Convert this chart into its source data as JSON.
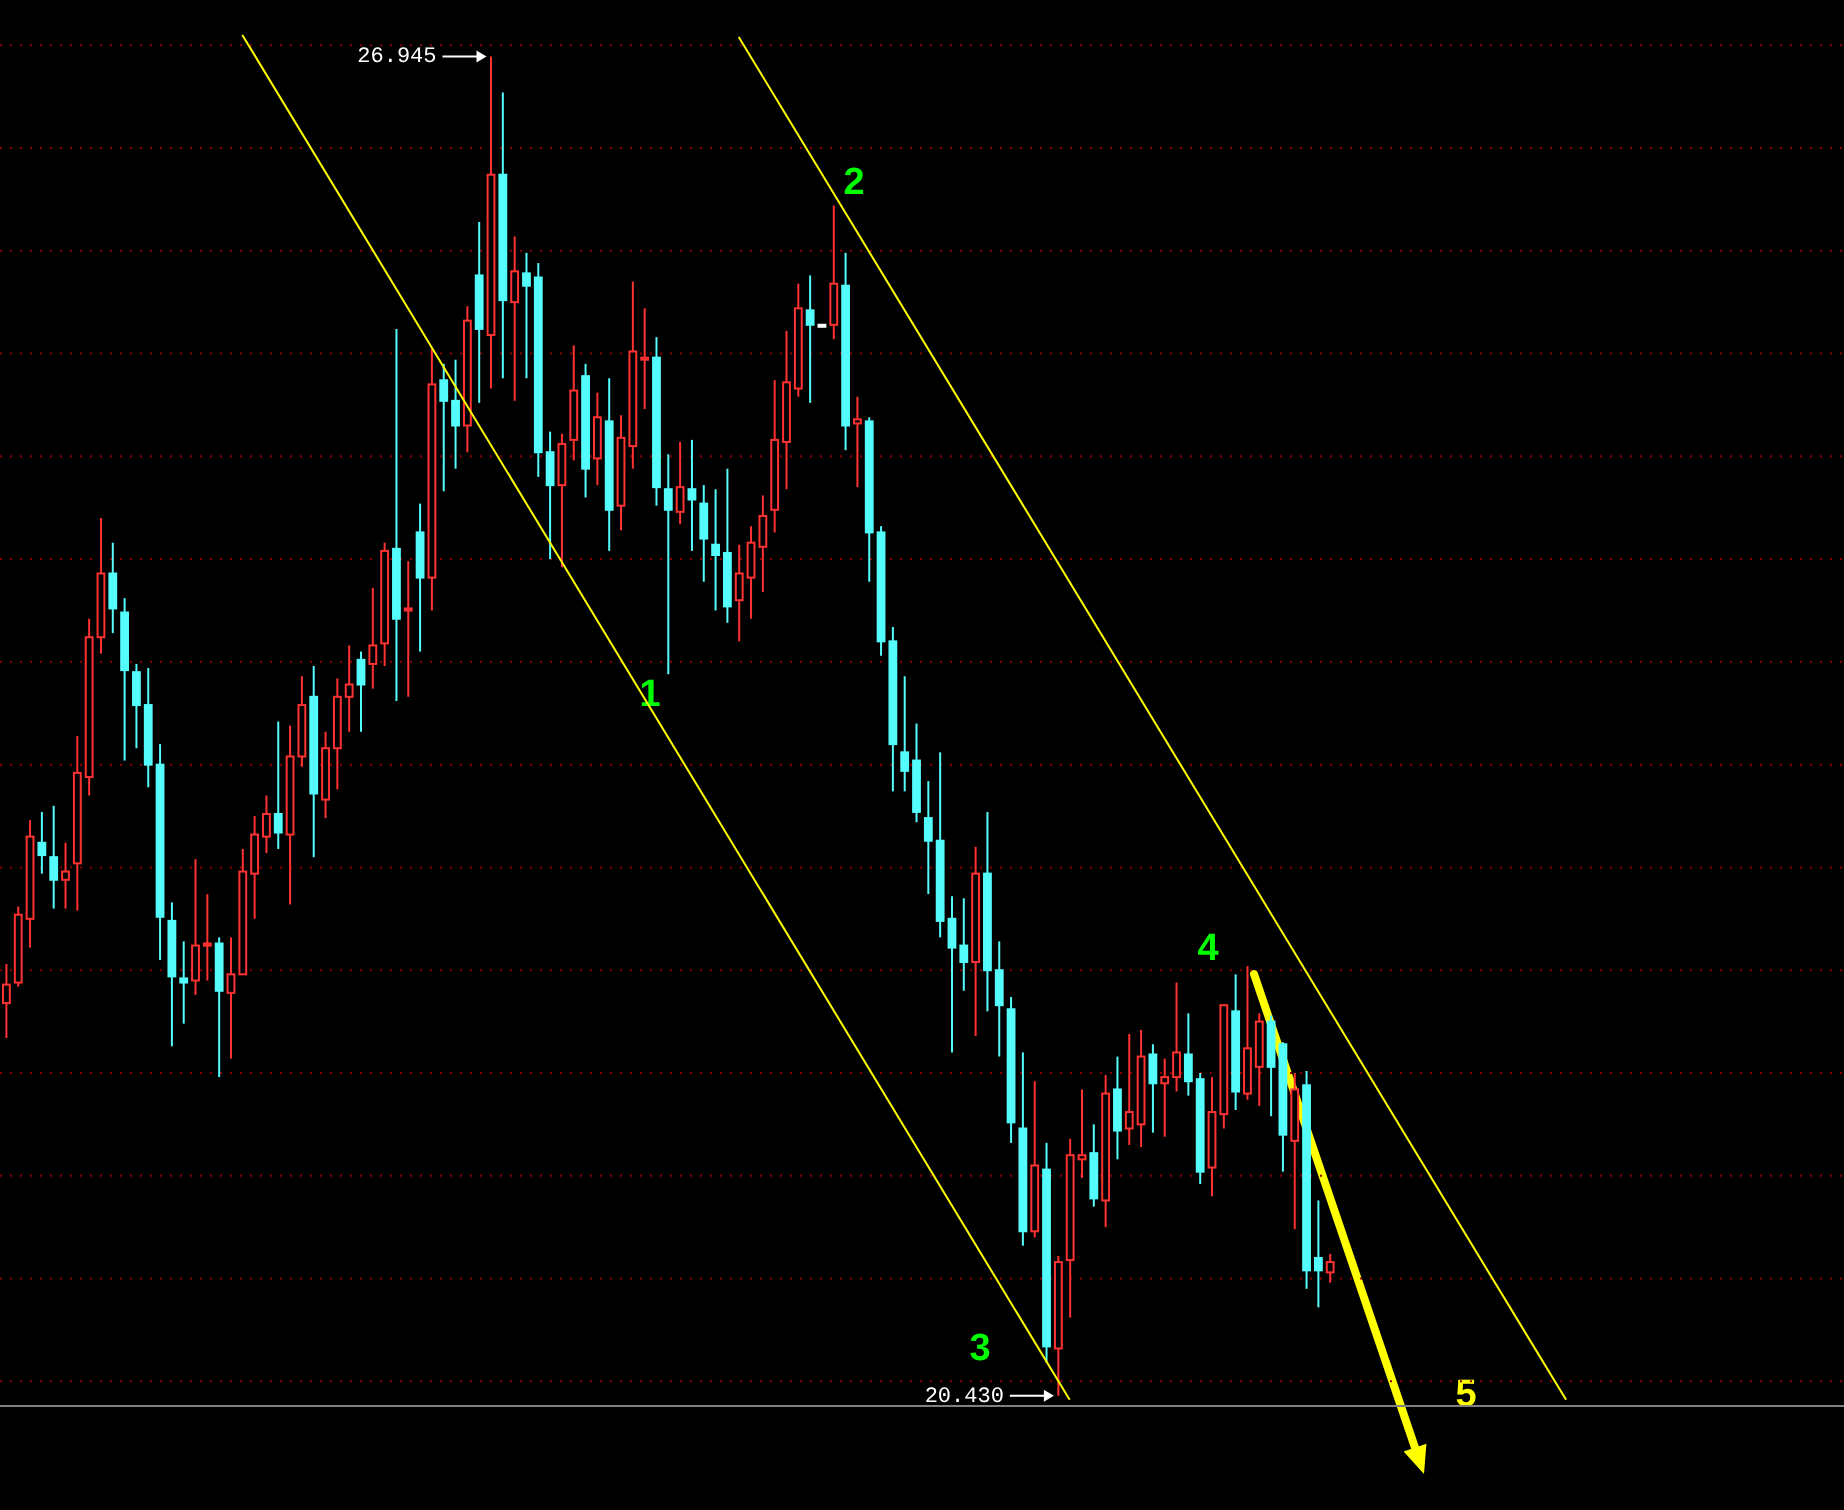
{
  "chart_data": {
    "type": "candlestick",
    "categories": [
      null,
      null,
      null,
      null,
      null,
      null,
      null,
      null,
      null,
      null,
      null,
      null,
      null,
      null,
      null,
      null,
      null,
      null,
      null,
      null,
      null,
      null,
      null,
      null,
      null,
      null,
      null,
      null,
      null,
      null,
      null,
      null,
      null,
      null,
      null,
      null,
      null,
      null,
      null,
      null,
      null,
      null,
      null,
      null,
      null,
      null,
      null,
      null,
      null,
      null,
      null,
      null,
      null,
      null,
      null,
      null,
      null,
      null,
      null,
      null,
      null,
      null,
      null,
      null,
      null,
      null,
      null,
      null,
      null,
      null,
      null,
      null,
      null,
      null,
      null,
      null,
      null,
      null,
      null,
      null,
      null,
      null,
      null,
      null,
      null,
      null,
      null,
      null,
      null,
      null,
      null,
      null,
      null,
      null,
      null,
      null,
      null,
      null,
      null,
      null,
      null,
      null,
      null,
      null,
      null,
      null,
      null,
      null,
      null,
      null,
      null,
      null,
      null,
      null,
      null,
      null,
      null,
      null,
      null,
      null,
      null,
      null,
      null,
      null,
      null,
      null,
      null,
      null,
      null,
      null,
      null,
      null,
      null
    ],
    "ohlc": [
      [
        22.34,
        22.53,
        22.17,
        22.43
      ],
      [
        22.44,
        22.81,
        22.42,
        22.77
      ],
      [
        22.75,
        23.23,
        22.61,
        23.15
      ],
      [
        23.12,
        23.27,
        22.97,
        23.06
      ],
      [
        23.05,
        23.3,
        22.8,
        22.94
      ],
      [
        22.94,
        23.12,
        22.8,
        22.98
      ],
      [
        23.02,
        23.64,
        22.79,
        23.46
      ],
      [
        23.44,
        24.21,
        23.35,
        24.12
      ],
      [
        24.12,
        24.7,
        24.04,
        24.43
      ],
      [
        24.43,
        24.58,
        24.14,
        24.26
      ],
      [
        24.24,
        24.31,
        23.52,
        23.96
      ],
      [
        23.95,
        23.99,
        23.58,
        23.79
      ],
      [
        23.79,
        23.97,
        23.39,
        23.5
      ],
      [
        23.5,
        23.6,
        22.55,
        22.76
      ],
      [
        22.74,
        22.83,
        22.13,
        22.47
      ],
      [
        22.46,
        22.64,
        22.24,
        22.44
      ],
      [
        22.45,
        23.04,
        22.38,
        22.62
      ],
      [
        22.62,
        22.87,
        22.45,
        22.63
      ],
      [
        22.63,
        22.66,
        21.98,
        22.4
      ],
      [
        22.39,
        22.66,
        22.07,
        22.48
      ],
      [
        22.48,
        23.09,
        22.48,
        22.98
      ],
      [
        22.97,
        23.25,
        22.75,
        23.16
      ],
      [
        23.15,
        23.35,
        23.07,
        23.26
      ],
      [
        23.26,
        23.71,
        23.09,
        23.17
      ],
      [
        23.16,
        23.69,
        22.82,
        23.54
      ],
      [
        23.54,
        23.93,
        23.49,
        23.79
      ],
      [
        23.83,
        23.98,
        23.05,
        23.36
      ],
      [
        23.33,
        23.66,
        23.24,
        23.58
      ],
      [
        23.58,
        23.92,
        23.38,
        23.83
      ],
      [
        23.83,
        24.08,
        23.66,
        23.89
      ],
      [
        24.01,
        24.05,
        23.66,
        23.89
      ],
      [
        23.99,
        24.36,
        23.87,
        24.08
      ],
      [
        24.09,
        24.58,
        23.98,
        24.54
      ],
      [
        24.55,
        25.62,
        23.81,
        24.21
      ],
      [
        24.25,
        24.49,
        23.83,
        24.26
      ],
      [
        24.63,
        24.77,
        24.05,
        24.41
      ],
      [
        24.41,
        25.53,
        24.25,
        25.35
      ],
      [
        25.37,
        25.45,
        24.83,
        25.27
      ],
      [
        25.27,
        25.47,
        24.94,
        25.15
      ],
      [
        25.15,
        25.73,
        25.02,
        25.66
      ],
      [
        25.88,
        26.14,
        25.26,
        25.62
      ],
      [
        25.59,
        26.945,
        25.33,
        26.37
      ],
      [
        26.37,
        26.77,
        25.38,
        25.76
      ],
      [
        25.75,
        26.07,
        25.27,
        25.9
      ],
      [
        25.89,
        25.99,
        25.38,
        25.83
      ],
      [
        25.87,
        25.94,
        24.9,
        25.02
      ],
      [
        25.02,
        25.12,
        24.5,
        24.86
      ],
      [
        24.86,
        25.11,
        24.46,
        25.06
      ],
      [
        25.08,
        25.54,
        24.98,
        25.32
      ],
      [
        25.39,
        25.45,
        24.8,
        24.94
      ],
      [
        24.99,
        25.31,
        24.86,
        25.19
      ],
      [
        25.17,
        25.38,
        24.54,
        24.74
      ],
      [
        24.76,
        25.2,
        24.64,
        25.09
      ],
      [
        25.05,
        25.85,
        24.94,
        25.51
      ],
      [
        25.47,
        25.72,
        25.23,
        25.48
      ],
      [
        25.48,
        25.58,
        24.76,
        24.85
      ],
      [
        24.84,
        25.01,
        23.94,
        24.74
      ],
      [
        24.73,
        25.07,
        24.67,
        24.85
      ],
      [
        24.84,
        25.08,
        24.54,
        24.79
      ],
      [
        24.77,
        24.86,
        24.39,
        24.6
      ],
      [
        24.57,
        24.84,
        24.25,
        24.52
      ],
      [
        24.53,
        24.94,
        24.19,
        24.27
      ],
      [
        24.3,
        24.57,
        24.1,
        24.43
      ],
      [
        24.41,
        24.66,
        24.21,
        24.58
      ],
      [
        24.56,
        24.81,
        24.34,
        24.71
      ],
      [
        24.74,
        25.37,
        24.63,
        25.08
      ],
      [
        25.07,
        25.61,
        24.84,
        25.36
      ],
      [
        25.33,
        25.84,
        25.29,
        25.72
      ],
      [
        25.71,
        25.88,
        25.26,
        25.64
      ],
      [
        25.64,
        25.64,
        25.64,
        25.64
      ],
      [
        25.64,
        26.22,
        25.57,
        25.84
      ],
      [
        25.83,
        25.99,
        25.03,
        25.15
      ],
      [
        25.16,
        25.29,
        24.85,
        25.18
      ],
      [
        25.17,
        25.19,
        24.39,
        24.63
      ],
      [
        24.63,
        24.66,
        24.03,
        24.1
      ],
      [
        24.1,
        24.17,
        23.37,
        23.6
      ],
      [
        23.56,
        23.93,
        23.37,
        23.47
      ],
      [
        23.52,
        23.7,
        23.22,
        23.27
      ],
      [
        23.24,
        23.42,
        22.87,
        23.13
      ],
      [
        23.13,
        23.56,
        22.66,
        22.74
      ],
      [
        22.75,
        22.86,
        22.1,
        22.61
      ],
      [
        22.62,
        22.85,
        22.4,
        22.54
      ],
      [
        22.54,
        23.1,
        22.18,
        22.97
      ],
      [
        22.97,
        23.27,
        22.3,
        22.5
      ],
      [
        22.5,
        22.64,
        22.08,
        22.33
      ],
      [
        22.31,
        22.37,
        21.66,
        21.76
      ],
      [
        21.73,
        22.1,
        21.16,
        21.23
      ],
      [
        21.23,
        21.96,
        21.2,
        21.55
      ],
      [
        21.53,
        21.66,
        20.59,
        20.67
      ],
      [
        20.66,
        21.11,
        20.43,
        21.08
      ],
      [
        21.09,
        21.68,
        20.81,
        21.6
      ],
      [
        21.58,
        21.92,
        21.49,
        21.6
      ],
      [
        21.61,
        21.75,
        21.35,
        21.39
      ],
      [
        21.38,
        21.99,
        21.25,
        21.9
      ],
      [
        21.92,
        22.08,
        21.58,
        21.72
      ],
      [
        21.73,
        22.19,
        21.65,
        21.81
      ],
      [
        21.75,
        22.21,
        21.64,
        22.08
      ],
      [
        22.09,
        22.14,
        21.71,
        21.95
      ],
      [
        21.95,
        22.07,
        21.69,
        21.98
      ],
      [
        21.98,
        22.44,
        21.91,
        22.1
      ],
      [
        22.09,
        22.29,
        21.89,
        21.96
      ],
      [
        21.97,
        22.0,
        21.46,
        21.52
      ],
      [
        21.54,
        21.98,
        21.4,
        21.81
      ],
      [
        21.8,
        22.33,
        21.73,
        22.33
      ],
      [
        22.3,
        22.48,
        21.82,
        21.91
      ],
      [
        21.9,
        22.52,
        21.87,
        22.12
      ],
      [
        22.03,
        22.29,
        21.84,
        22.25
      ],
      [
        22.25,
        22.28,
        21.79,
        22.03
      ],
      [
        22.14,
        22.15,
        21.52,
        21.7
      ],
      [
        21.67,
        22.0,
        21.24,
        21.92
      ],
      [
        21.94,
        22.01,
        20.95,
        21.04
      ],
      [
        21.1,
        21.38,
        20.86,
        21.04
      ],
      [
        21.03,
        21.12,
        20.98,
        21.08
      ],
      null,
      null,
      null,
      null,
      null,
      null,
      null,
      null,
      null,
      null,
      null,
      null,
      null,
      null,
      null,
      null,
      null,
      null,
      null,
      null
    ],
    "colors": [
      "#ff3232",
      "#ff3232",
      "#ff3232",
      "#54fcfc",
      "#54fcfc",
      "#ff3232",
      "#ff3232",
      "#ff3232",
      "#ff3232",
      "#54fcfc",
      "#54fcfc",
      "#54fcfc",
      "#54fcfc",
      "#54fcfc",
      "#54fcfc",
      "#54fcfc",
      "#ff3232",
      "#ff3232",
      "#54fcfc",
      "#ff3232",
      "#ff3232",
      "#ff3232",
      "#ff3232",
      "#54fcfc",
      "#ff3232",
      "#ff3232",
      "#54fcfc",
      "#ff3232",
      "#ff3232",
      "#ff3232",
      "#54fcfc",
      "#ff3232",
      "#ff3232",
      "#54fcfc",
      "#ff3232",
      "#54fcfc",
      "#ff3232",
      "#54fcfc",
      "#54fcfc",
      "#ff3232",
      "#54fcfc",
      "#ff3232",
      "#54fcfc",
      "#ff3232",
      "#54fcfc",
      "#54fcfc",
      "#54fcfc",
      "#ff3232",
      "#ff3232",
      "#54fcfc",
      "#ff3232",
      "#54fcfc",
      "#ff3232",
      "#ff3232",
      "#ff3232",
      "#54fcfc",
      "#54fcfc",
      "#ff3232",
      "#54fcfc",
      "#54fcfc",
      "#54fcfc",
      "#54fcfc",
      "#ff3232",
      "#ff3232",
      "#ff3232",
      "#ff3232",
      "#ff3232",
      "#ff3232",
      "#54fcfc",
      "#ffffff",
      "#ff3232",
      "#54fcfc",
      "#ff3232",
      "#54fcfc",
      "#54fcfc",
      "#54fcfc",
      "#54fcfc",
      "#54fcfc",
      "#54fcfc",
      "#54fcfc",
      "#54fcfc",
      "#54fcfc",
      "#ff3232",
      "#54fcfc",
      "#54fcfc",
      "#54fcfc",
      "#54fcfc",
      "#ff3232",
      "#54fcfc",
      "#ff3232",
      "#ff3232",
      "#ff3232",
      "#54fcfc",
      "#ff3232",
      "#54fcfc",
      "#ff3232",
      "#ff3232",
      "#54fcfc",
      "#ff3232",
      "#ff3232",
      "#54fcfc",
      "#54fcfc",
      "#ff3232",
      "#ff3232",
      "#54fcfc",
      "#ff3232",
      "#ff3232",
      "#54fcfc",
      "#54fcfc",
      "#ff3232",
      "#54fcfc",
      "#54fcfc",
      "#ff3232",
      null,
      null,
      null,
      null,
      null,
      null,
      null,
      null,
      null,
      null,
      null,
      null,
      null,
      null,
      null,
      null,
      null,
      null,
      null,
      null
    ],
    "series": [
      {
        "type": "line",
        "color": "#ffff00",
        "values": [
          null,
          null,
          null,
          null,
          null,
          null,
          null,
          null,
          null,
          null,
          null,
          null,
          null,
          null,
          null,
          null,
          null,
          null,
          null,
          null,
          27.05,
          null,
          null,
          null,
          null,
          null,
          null,
          null,
          null,
          null,
          null,
          null,
          null,
          null,
          null,
          null,
          null,
          null,
          null,
          null,
          null,
          null,
          null,
          null,
          null,
          null,
          null,
          null,
          null,
          null,
          null,
          null,
          null,
          null,
          null,
          null,
          null,
          null,
          null,
          null,
          null,
          null,
          null,
          null,
          null,
          null,
          null,
          null,
          null,
          null,
          null,
          null,
          null,
          null,
          null,
          null,
          null,
          null,
          null,
          null,
          null,
          null,
          null,
          null,
          null,
          null,
          null,
          null,
          null,
          null,
          20.41,
          null,
          null,
          null,
          null,
          null,
          null,
          null,
          null,
          null,
          null,
          null,
          null,
          null,
          null,
          null,
          null,
          null,
          null,
          null,
          null,
          null,
          null,
          null,
          null,
          null,
          null,
          null,
          null,
          null,
          null,
          null,
          null,
          null,
          null,
          null,
          null,
          null,
          null,
          null,
          null,
          null,
          null
        ]
      },
      {
        "type": "line",
        "color": "#ffff00",
        "values": [
          null,
          null,
          null,
          null,
          null,
          null,
          null,
          null,
          null,
          null,
          null,
          null,
          null,
          null,
          null,
          null,
          null,
          null,
          null,
          null,
          null,
          null,
          null,
          null,
          null,
          null,
          null,
          null,
          null,
          null,
          null,
          null,
          null,
          null,
          null,
          null,
          null,
          null,
          null,
          null,
          null,
          null,
          null,
          null,
          null,
          null,
          null,
          null,
          null,
          null,
          null,
          null,
          null,
          null,
          null,
          null,
          null,
          null,
          null,
          null,
          null,
          null,
          27.04,
          null,
          null,
          null,
          null,
          null,
          null,
          null,
          null,
          null,
          null,
          null,
          null,
          null,
          null,
          null,
          null,
          null,
          null,
          null,
          null,
          null,
          null,
          null,
          null,
          null,
          null,
          null,
          null,
          null,
          null,
          null,
          null,
          null,
          null,
          null,
          null,
          null,
          null,
          null,
          null,
          null,
          null,
          null,
          null,
          null,
          null,
          null,
          null,
          null,
          null,
          null,
          null,
          null,
          null,
          null,
          null,
          null,
          null,
          null,
          null,
          null,
          null,
          null,
          null,
          null,
          null,
          null,
          null,
          null,
          20.41
        ]
      }
    ],
    "ylim": [
      20.38,
      27.22
    ],
    "yticks": [
      {
        "value": 20.5,
        "label": null
      },
      {
        "value": 21.0,
        "label": null
      },
      {
        "value": 21.5,
        "label": null
      },
      {
        "value": 22.0,
        "label": null
      },
      {
        "value": 22.5,
        "label": null
      },
      {
        "value": 23.0,
        "label": null
      },
      {
        "value": 23.5,
        "label": null
      },
      {
        "value": 24.0,
        "label": null
      },
      {
        "value": 24.5,
        "label": null
      },
      {
        "value": 25.0,
        "label": null
      },
      {
        "value": 25.5,
        "label": null
      },
      {
        "value": 26.0,
        "label": null
      },
      {
        "value": 26.5,
        "label": null
      },
      {
        "value": 27.0,
        "label": null
      }
    ],
    "grid": "y",
    "annotations": [
      "26.945",
      "20.430",
      "1",
      "2",
      "3",
      "4",
      "5"
    ]
  }
}
